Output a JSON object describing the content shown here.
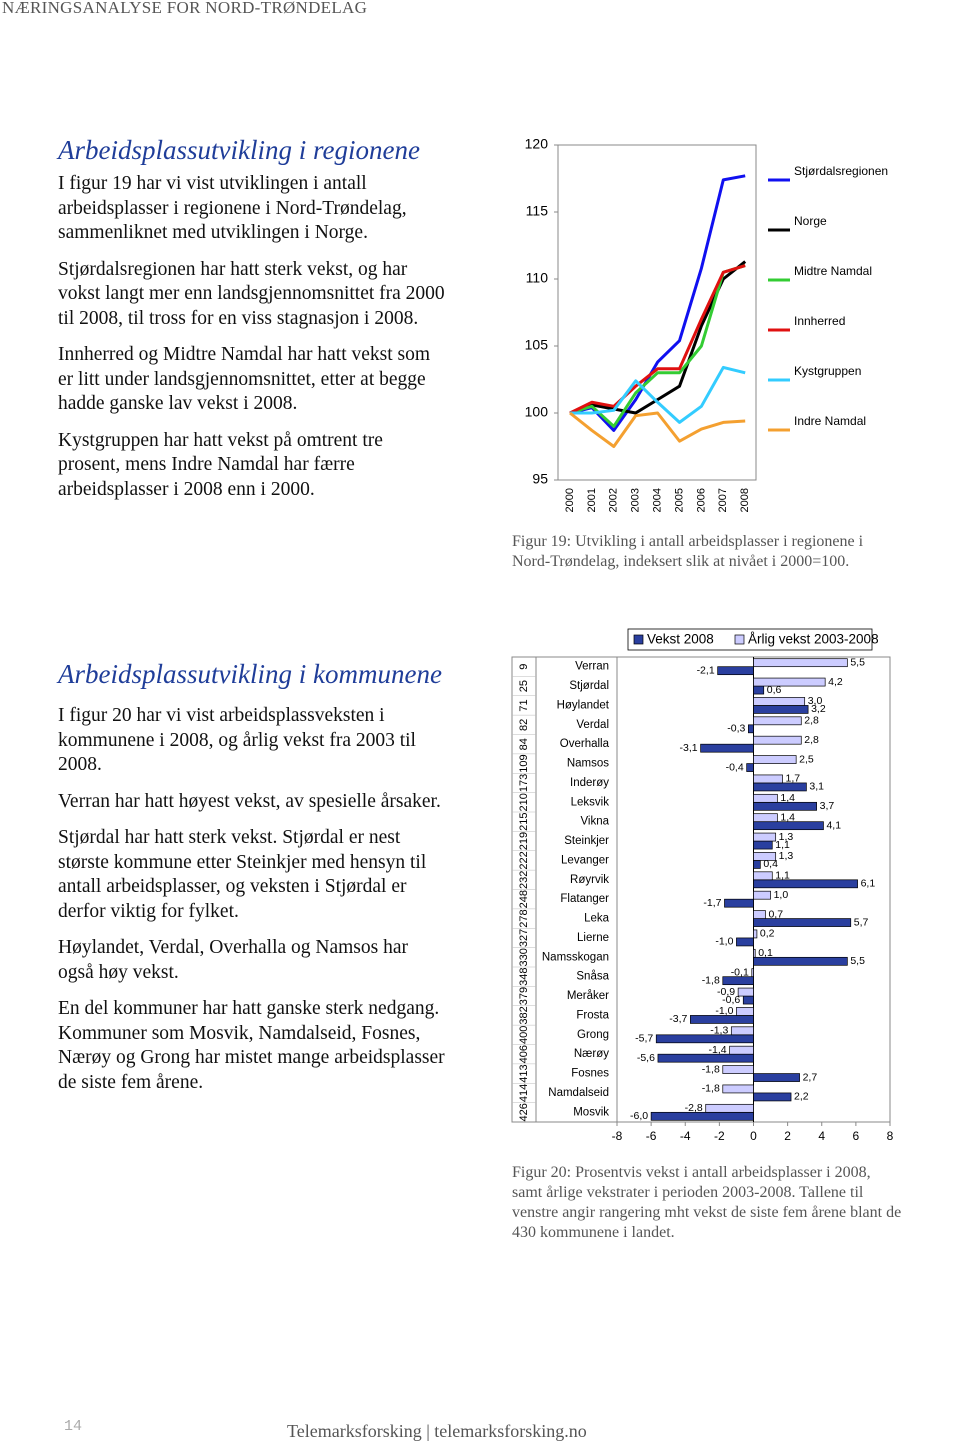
{
  "header": "NÆRINGSANALYSE FOR NORD-TRØNDELAG",
  "section1": {
    "title": "Arbeidsplassutvikling i regionene",
    "paragraphs": [
      "I figur 19 har vi vist utviklingen i antall arbeidsplasser i regionene i Nord-Trøndelag, sammenliknet med utviklingen i Norge.",
      "Stjørdalsregionen har hatt sterk vekst, og har vokst langt mer enn landsgjennomsnittet fra 2000 til 2008, til tross for en viss stagnasjon i 2008.",
      "Innherred og Midtre Namdal har hatt vekst som er litt under landsgjennom­snittet, etter at begge hadde ganske lav vekst i 2008.",
      "Kystgruppen har hatt vekst på omtrent tre prosent, mens Indre Namdal har færre arbeidsplasser i 2008 enn i 2000."
    ]
  },
  "section2": {
    "title": "Arbeidsplassutvikling i kommunene",
    "paragraphs": [
      "I figur 20 har vi vist arbeidsplassveksten i kommunene i 2008, og årlig vekst fra 2003 til 2008.",
      "Verran har hatt høyest vekst, av spesielle årsaker.",
      "Stjørdal har hatt sterk vekst. Stjørdal er nest største kommune etter Steinkjer med hensyn til antall arbeidsplasser, og veksten i Stjørdal er derfor viktig for fylket.",
      "Høylandet, Verdal, Overhalla og Namsos har også høy vekst.",
      "En del kommuner har hatt ganske sterk nedgang. Kommuner som Mosvik, Namdalseid, Fosnes, Nærøy og Grong har mistet mange arbeidsplasser de siste fem årene."
    ]
  },
  "chart_data": [
    {
      "type": "line",
      "caption": "Figur 19: Utvikling i antall arbeidsplasser i regionene i Nord-Trøndelag, indeksert slik at nivået i 2000=100.",
      "x": [
        2000,
        2001,
        2002,
        2003,
        2004,
        2005,
        2006,
        2007,
        2008
      ],
      "ylim": [
        95,
        120
      ],
      "yticks": [
        95,
        100,
        105,
        110,
        115,
        120
      ],
      "legend": "right",
      "grid": false,
      "series": [
        {
          "name": "Stjørdalsregionen",
          "color": "#1010f0",
          "values": [
            100,
            100.4,
            98.7,
            101,
            103.8,
            105.4,
            110.8,
            117.4,
            117.7
          ]
        },
        {
          "name": "Norge",
          "color": "#000000",
          "values": [
            100,
            100.6,
            100.3,
            100,
            101,
            102,
            106.5,
            110,
            111.3
          ]
        },
        {
          "name": "Midtre Namdal",
          "color": "#33cc33",
          "values": [
            100,
            100.5,
            99,
            101.5,
            103,
            103,
            105,
            110.5,
            111
          ]
        },
        {
          "name": "Innherred",
          "color": "#e01010",
          "values": [
            100,
            100.8,
            100.5,
            102,
            103.3,
            103.3,
            107,
            110.5,
            111
          ]
        },
        {
          "name": "Kystgruppen",
          "color": "#33ccff",
          "values": [
            100,
            100,
            100.2,
            102.4,
            100.8,
            99.3,
            100.5,
            103.4,
            103
          ]
        },
        {
          "name": "Indre Namdal",
          "color": "#f4a030",
          "values": [
            100,
            98.7,
            97.5,
            99.8,
            100,
            97.9,
            98.8,
            99.3,
            99.4
          ]
        }
      ]
    },
    {
      "type": "hbar",
      "caption": "Figur 20: Prosentvis vekst i antall arbeidsplasser i 2008, samt årlige vekstrater i perioden 2003-2008. Tallene til venstre angir rangering mht vekst de siste fem årene blant de 430 kommunene i landet.",
      "categories": [
        "Verran",
        "Stjørdal",
        "Høylandet",
        "Verdal",
        "Overhalla",
        "Namsos",
        "Inderøy",
        "Leksvik",
        "Vikna",
        "Steinkjer",
        "Levanger",
        "Røyrvik",
        "Flatanger",
        "Leka",
        "Lierne",
        "Namsskogan",
        "Snåsa",
        "Meråker",
        "Frosta",
        "Grong",
        "Nærøy",
        "Fosnes",
        "Namdalseid",
        "Mosvik"
      ],
      "ranks": [
        9,
        25,
        71,
        82,
        84,
        109,
        173,
        210,
        215,
        219,
        222,
        232,
        248,
        278,
        327,
        330,
        348,
        379,
        382,
        400,
        406,
        413,
        414,
        426
      ],
      "xlim": [
        -8,
        8
      ],
      "xticks": [
        -8,
        -6,
        -4,
        -2,
        0,
        2,
        4,
        6,
        8
      ],
      "legend": "top",
      "grid": false,
      "series": [
        {
          "name": "Vekst 2008",
          "color": "#2a3f9f",
          "values": [
            -2.1,
            0.6,
            3.2,
            -0.3,
            -3.1,
            -0.4,
            3.1,
            3.7,
            4.1,
            1.1,
            0.4,
            6.1,
            -1.7,
            5.7,
            -1.0,
            5.5,
            -1.8,
            -0.6,
            -3.7,
            -5.7,
            -5.6,
            2.7,
            2.2,
            -6.0
          ],
          "value_labels": [
            "-2,1",
            "0,6",
            "3,2",
            "-0,3",
            "-3,1",
            "-0,4",
            "3,1",
            "3,7",
            "4,1",
            "1,1",
            "0,4",
            "6,1",
            "-1,7",
            "5,7",
            "-1,0",
            "5,5",
            "-1,8",
            "-0,6",
            "-3,7",
            "-5,7",
            "-5,6",
            "2,7",
            "2,2",
            "-6,0"
          ]
        },
        {
          "name": "Årlig vekst 2003-2008",
          "color": "#ccccff",
          "values": [
            5.5,
            4.2,
            3.0,
            2.8,
            2.8,
            2.5,
            1.7,
            1.4,
            1.4,
            1.3,
            1.3,
            1.1,
            1.0,
            0.7,
            0.2,
            0.1,
            -0.1,
            -0.9,
            -1.0,
            -1.3,
            -1.4,
            -1.8,
            -1.8,
            -2.8
          ],
          "value_labels": [
            "5,5",
            "4,2",
            "3,0",
            "2,8",
            "2,8",
            "2,5",
            "1,7",
            "1,4",
            "1,4",
            "1,3",
            "1,3",
            "1,1",
            "1,0",
            "0,7",
            "0,2",
            "0,1",
            "-0,1",
            "-0,9",
            "-1,0",
            "-1,3",
            "-1,4",
            "-1,8",
            "-1,8",
            "-2,8"
          ]
        }
      ]
    }
  ],
  "footer": {
    "page": "14",
    "text": "Telemarksforsking | telemarksforsking.no"
  }
}
